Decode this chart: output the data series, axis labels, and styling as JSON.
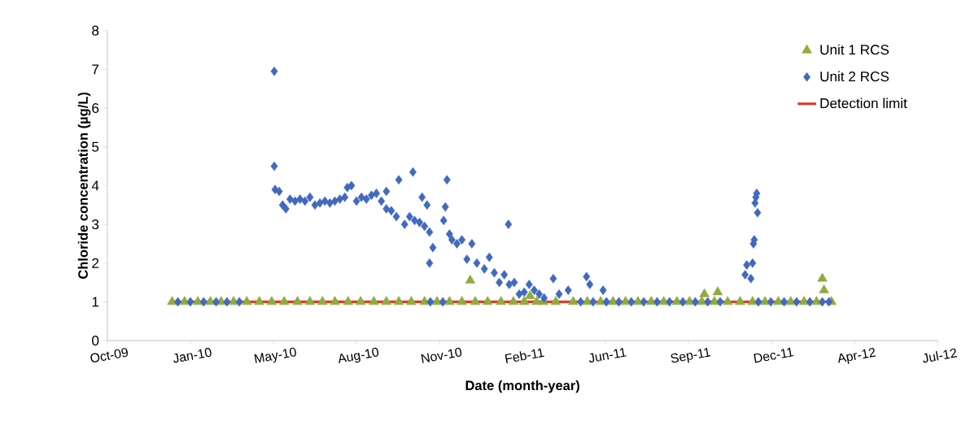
{
  "chart_data": {
    "type": "scatter",
    "xlabel": "Date (month-year)",
    "ylabel": "Chloride concentration (µg/L)",
    "xlim": [
      "2009-10-15",
      "2012-07-11"
    ],
    "xticks": [
      {
        "value": "2009-10-15",
        "label": "Oct-09"
      },
      {
        "value": "2010-01-23",
        "label": "Jan-10"
      },
      {
        "value": "2010-05-03",
        "label": "May-10"
      },
      {
        "value": "2010-08-11",
        "label": "Aug-10"
      },
      {
        "value": "2010-11-19",
        "label": "Nov-10"
      },
      {
        "value": "2011-02-27",
        "label": "Feb-11"
      },
      {
        "value": "2011-06-07",
        "label": "Jun-11"
      },
      {
        "value": "2011-09-15",
        "label": "Sep-11"
      },
      {
        "value": "2011-12-24",
        "label": "Dec-11"
      },
      {
        "value": "2012-04-02",
        "label": "Apr-12"
      },
      {
        "value": "2012-07-11",
        "label": "Jul-12"
      }
    ],
    "ylim": [
      0,
      8
    ],
    "yticks": [
      0,
      1,
      2,
      3,
      4,
      5,
      6,
      7,
      8
    ],
    "grid": false,
    "legend": "top right",
    "series": [
      {
        "name": "Unit 1 RCS",
        "type": "scatter",
        "marker": "triangle",
        "color": "#8fac3e",
        "x": [
          "2010-01-01",
          "2010-01-16",
          "2010-02-01",
          "2010-02-16",
          "2010-03-01",
          "2010-03-16",
          "2010-04-01",
          "2010-04-16",
          "2010-05-01",
          "2010-05-16",
          "2010-06-01",
          "2010-06-16",
          "2010-07-01",
          "2010-07-16",
          "2010-08-01",
          "2010-08-16",
          "2010-09-01",
          "2010-09-16",
          "2010-10-01",
          "2010-10-16",
          "2010-11-01",
          "2010-11-16",
          "2010-12-01",
          "2010-12-16",
          "2010-12-26",
          "2011-01-01",
          "2011-01-16",
          "2011-02-01",
          "2011-02-16",
          "2011-03-01",
          "2011-03-08",
          "2011-03-16",
          "2011-03-24",
          "2011-04-08",
          "2011-04-29",
          "2011-05-16",
          "2011-06-01",
          "2011-06-16",
          "2011-07-01",
          "2011-07-16",
          "2011-08-01",
          "2011-08-16",
          "2011-09-01",
          "2011-09-16",
          "2011-10-01",
          "2011-10-04",
          "2011-10-16",
          "2011-10-20",
          "2011-11-01",
          "2011-11-16",
          "2011-12-01",
          "2011-12-16",
          "2012-01-01",
          "2012-01-16",
          "2012-02-01",
          "2012-02-16",
          "2012-02-23",
          "2012-02-25",
          "2012-03-05"
        ],
        "values": [
          1,
          1,
          1,
          1,
          1,
          1,
          1,
          1,
          1,
          1,
          1,
          1,
          1,
          1,
          1,
          1,
          1,
          1,
          1,
          1,
          1,
          1,
          1,
          1,
          1.55,
          1,
          1,
          1,
          1,
          1,
          1.15,
          1,
          1,
          1,
          1,
          1,
          1,
          1,
          1,
          1,
          1,
          1,
          1,
          1,
          1,
          1.2,
          1,
          1.25,
          1,
          1,
          1,
          1,
          1,
          1,
          1,
          1,
          1.6,
          1.3,
          1
        ]
      },
      {
        "name": "Unit 2 RCS",
        "type": "scatter",
        "marker": "diamond",
        "color": "#4169c0",
        "x": [
          "2010-01-08",
          "2010-01-23",
          "2010-02-08",
          "2010-02-23",
          "2010-03-08",
          "2010-03-23",
          "2010-05-04",
          "2010-05-04",
          "2010-05-05",
          "2010-05-10",
          "2010-05-14",
          "2010-05-18",
          "2010-05-23",
          "2010-05-29",
          "2010-06-04",
          "2010-06-10",
          "2010-06-16",
          "2010-06-22",
          "2010-06-28",
          "2010-07-04",
          "2010-07-10",
          "2010-07-16",
          "2010-07-22",
          "2010-07-28",
          "2010-07-31",
          "2010-08-05",
          "2010-08-11",
          "2010-08-17",
          "2010-08-23",
          "2010-08-29",
          "2010-09-04",
          "2010-09-10",
          "2010-09-16",
          "2010-09-16",
          "2010-09-22",
          "2010-09-28",
          "2010-10-01",
          "2010-10-08",
          "2010-10-14",
          "2010-10-18",
          "2010-10-20",
          "2010-10-26",
          "2010-10-29",
          "2010-11-01",
          "2010-11-04",
          "2010-11-07",
          "2010-11-07",
          "2010-11-11",
          "2010-11-08",
          "2010-11-23",
          "2010-11-24",
          "2010-11-26",
          "2010-11-28",
          "2010-12-01",
          "2010-12-04",
          "2010-12-10",
          "2010-12-16",
          "2010-12-22",
          "2010-12-28",
          "2011-01-03",
          "2011-01-12",
          "2011-01-18",
          "2011-01-24",
          "2011-01-30",
          "2011-02-05",
          "2011-02-10",
          "2011-02-11",
          "2011-02-17",
          "2011-02-23",
          "2011-03-01",
          "2011-03-07",
          "2011-03-13",
          "2011-03-19",
          "2011-03-25",
          "2011-04-05",
          "2011-04-12",
          "2011-04-23",
          "2011-05-08",
          "2011-05-15",
          "2011-05-19",
          "2011-05-23",
          "2011-06-04",
          "2011-06-08",
          "2011-06-23",
          "2011-07-08",
          "2011-07-23",
          "2011-08-08",
          "2011-08-23",
          "2011-09-08",
          "2011-09-23",
          "2011-10-08",
          "2011-10-23",
          "2011-11-22",
          "2011-11-24",
          "2011-11-29",
          "2011-12-01",
          "2011-12-02",
          "2011-12-03",
          "2011-12-04",
          "2011-12-05",
          "2011-12-06",
          "2011-12-07",
          "2011-12-08",
          "2011-12-23",
          "2012-01-08",
          "2012-01-23",
          "2012-02-08",
          "2012-02-23",
          "2012-03-02"
        ],
        "values": [
          1,
          1,
          1,
          1,
          1,
          1,
          6.95,
          4.5,
          3.9,
          3.85,
          3.5,
          3.4,
          3.65,
          3.6,
          3.65,
          3.6,
          3.7,
          3.5,
          3.55,
          3.6,
          3.55,
          3.6,
          3.65,
          3.7,
          3.95,
          4.0,
          3.6,
          3.7,
          3.65,
          3.75,
          3.8,
          3.6,
          3.4,
          3.85,
          3.35,
          3.2,
          4.15,
          3.0,
          3.2,
          4.35,
          3.1,
          3.05,
          3.7,
          2.95,
          3.5,
          2.8,
          2.0,
          2.4,
          1,
          1,
          3.1,
          3.45,
          4.15,
          2.75,
          2.6,
          2.5,
          2.6,
          2.1,
          2.5,
          2.0,
          1.85,
          2.15,
          1.75,
          1.5,
          1.7,
          3.0,
          1.45,
          1.5,
          1.2,
          1.25,
          1.45,
          1.3,
          1.2,
          1.1,
          1.6,
          1.2,
          1.3,
          1,
          1.65,
          1.45,
          1,
          1.3,
          1,
          1,
          1,
          1,
          1,
          1,
          1,
          1,
          1,
          1,
          1.7,
          1.95,
          1.6,
          2.0,
          2.5,
          2.6,
          3.55,
          3.7,
          3.8,
          3.3,
          1,
          1,
          1,
          1,
          1,
          1,
          1
        ]
      },
      {
        "name": "Detection limit",
        "type": "line",
        "marker": "none",
        "line_style": "solid",
        "color": "#e5392a",
        "x": [
          "2010-01-01",
          "2012-03-05"
        ],
        "values": [
          1,
          1
        ]
      }
    ]
  }
}
